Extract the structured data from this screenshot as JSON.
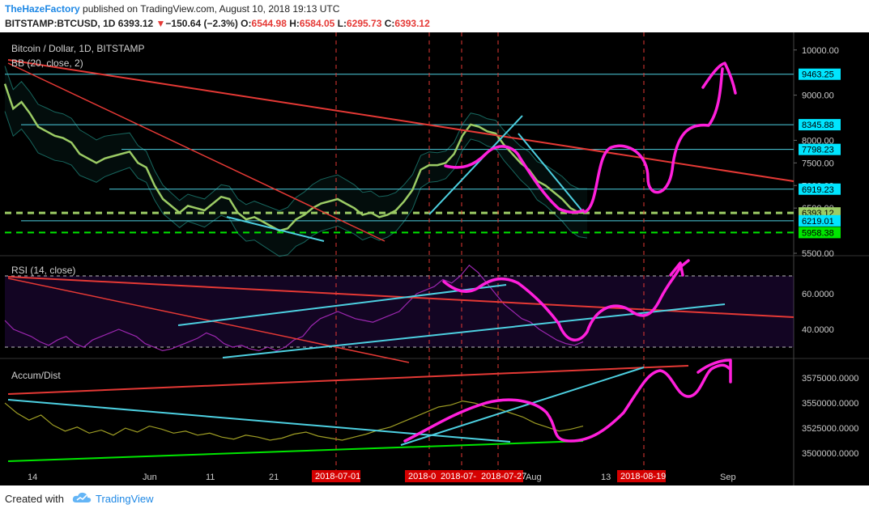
{
  "header": {
    "publisher": "TheHazeFactory",
    "published_text": "published on TradingView.com, August 10, 2018 19:13 UTC",
    "symbol": "BITSTAMP:BTCUSD, 1D",
    "last": "6393.12",
    "change_arrow": "▼",
    "change": "−150.64 (−2.3%)",
    "open_label": "O:",
    "open": "6544.98",
    "high_label": "H:",
    "high": "6584.05",
    "low_label": "L:",
    "low": "6295.73",
    "close_label": "C:",
    "close": "6393.12"
  },
  "footer": {
    "created_with": "Created with",
    "brand": "TradingView",
    "logo_icon": "tradingview-cloud-icon"
  },
  "chart_data": [
    {
      "type": "line",
      "panel": "price",
      "title": "Bitcoin / Dollar, 1D, BITSTAMP",
      "indicator": "BB (20, close, 2)",
      "ylim": [
        5500,
        10300
      ],
      "ytick_labels": [
        "10000.00",
        "9000.00",
        "8000.00",
        "7500.00",
        "7000.00",
        "6500.00",
        "5500.00"
      ],
      "yticks": [
        10000,
        9000,
        8000,
        7500,
        7000,
        6500,
        5500
      ],
      "price_labels": [
        {
          "text": "9463.25",
          "value": 9463.25,
          "bg": "#00e5ff",
          "fg": "#000000"
        },
        {
          "text": "8345.88",
          "value": 8345.88,
          "bg": "#00e5ff",
          "fg": "#000000"
        },
        {
          "text": "7798.23",
          "value": 7798.23,
          "bg": "#00e5ff",
          "fg": "#000000"
        },
        {
          "text": "6919.23",
          "value": 6919.23,
          "bg": "#00e5ff",
          "fg": "#000000"
        },
        {
          "text": "6393.12",
          "value": 6393.12,
          "bg": "#9ccc65",
          "fg": "#000000"
        },
        {
          "text": "6219.01",
          "value": 6219.01,
          "bg": "#00e5ff",
          "fg": "#000000"
        },
        {
          "text": "5958.38",
          "value": 5958.38,
          "bg": "#00e600",
          "fg": "#000000"
        }
      ],
      "series": [
        {
          "values": [
            9250,
            8700,
            8850,
            8600,
            8300,
            8200,
            8100,
            8050,
            7950,
            7700,
            7600,
            7500,
            7600,
            7650,
            7700,
            7750,
            7500,
            7400,
            7000,
            6700,
            6550,
            6400,
            6550,
            6500,
            6450,
            6600,
            6750,
            6700,
            6400,
            6250,
            6300,
            6200,
            6100,
            6000,
            6050,
            6250,
            6350,
            6500,
            6600,
            6650,
            6700,
            6600,
            6500,
            6350,
            6400,
            6300,
            6350,
            6450,
            6650,
            6900,
            7350,
            7450,
            7450,
            7500,
            7700,
            8100,
            8350,
            8300,
            8200,
            8150,
            7900,
            7700,
            7500,
            7350,
            7100,
            7000,
            6850,
            6700,
            6500,
            6400,
            6393.12
          ]
        }
      ],
      "horizontal_levels": [
        9463.25,
        8345.88,
        7798.23,
        6919.23,
        6219.01
      ],
      "support_level": 5958.38,
      "current_level": 6393.12
    },
    {
      "type": "line",
      "panel": "rsi",
      "title": "RSI (14, close)",
      "ylim": [
        25,
        80
      ],
      "yticks": [
        60,
        40
      ],
      "ytick_labels": [
        "60.0000",
        "40.0000"
      ],
      "bands": [
        70,
        30
      ],
      "series": [
        {
          "values": [
            45,
            40,
            38,
            36,
            33,
            31,
            34,
            36,
            32,
            30,
            34,
            36,
            38,
            40,
            38,
            36,
            32,
            30,
            28,
            29,
            31,
            33,
            35,
            38,
            36,
            32,
            30,
            31,
            29,
            28,
            30,
            28,
            30,
            34,
            36,
            42,
            46,
            48,
            50,
            48,
            46,
            45,
            44,
            46,
            48,
            50,
            55,
            60,
            62,
            64,
            68,
            66,
            70,
            76,
            72,
            66,
            60,
            54,
            50,
            46,
            44,
            40,
            37,
            34,
            32,
            31,
            33
          ]
        }
      ]
    },
    {
      "type": "line",
      "panel": "accum_dist",
      "title": "Accum/Dist",
      "ylim": [
        3492000,
        3592000
      ],
      "yticks": [
        3575000,
        3550000,
        3525000,
        3500000
      ],
      "ytick_labels": [
        "3575000.0000",
        "3550000.0000",
        "3525000.0000",
        "3500000.0000"
      ],
      "series": [
        {
          "values": [
            3550000,
            3540000,
            3533000,
            3538000,
            3528000,
            3522000,
            3526000,
            3520000,
            3523000,
            3518000,
            3525000,
            3521000,
            3527000,
            3524000,
            3520000,
            3522000,
            3518000,
            3520000,
            3516000,
            3514000,
            3518000,
            3516000,
            3513000,
            3515000,
            3519000,
            3521000,
            3517000,
            3515000,
            3513000,
            3516000,
            3519000,
            3523000,
            3526000,
            3531000,
            3536000,
            3541000,
            3546000,
            3548000,
            3552000,
            3550000,
            3546000,
            3544000,
            3540000,
            3536000,
            3530000,
            3526000,
            3522000,
            3524000,
            3527000
          ]
        }
      ]
    },
    {
      "type": "time_axis",
      "tick_labels": [
        "14",
        "Jun",
        "11",
        "21",
        "Aug",
        "13",
        "Sep"
      ],
      "highlighted_labels": [
        "2018-07-01",
        "2018-0",
        "2018-07-",
        "2018-07-27",
        "2018-08-19"
      ]
    }
  ]
}
